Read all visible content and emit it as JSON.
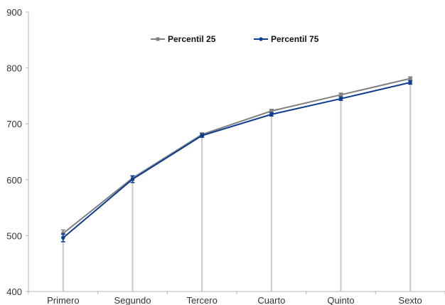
{
  "chart_data": {
    "type": "line",
    "title": "",
    "xlabel": "",
    "ylabel": "",
    "categories": [
      "Primero",
      "Segundo",
      "Tercero",
      "Cuarto",
      "Quinto",
      "Sexto"
    ],
    "ylim": [
      400,
      900
    ],
    "yticks": [
      400,
      500,
      600,
      700,
      800,
      900
    ],
    "grid": false,
    "legend_position": "top-center",
    "drop_lines": true,
    "error_bars": true,
    "series": [
      {
        "name": "Percentil 25",
        "color": "#808080",
        "marker": "square",
        "values": [
          504,
          603,
          681,
          723,
          752,
          781
        ],
        "error": [
          6,
          4,
          3,
          3,
          3,
          3
        ]
      },
      {
        "name": "Percentil 75",
        "color": "#0b3d91",
        "marker": "circle",
        "values": [
          496,
          601,
          679,
          717,
          745,
          774
        ],
        "error": [
          7,
          6,
          3,
          3,
          3,
          3
        ]
      }
    ]
  }
}
